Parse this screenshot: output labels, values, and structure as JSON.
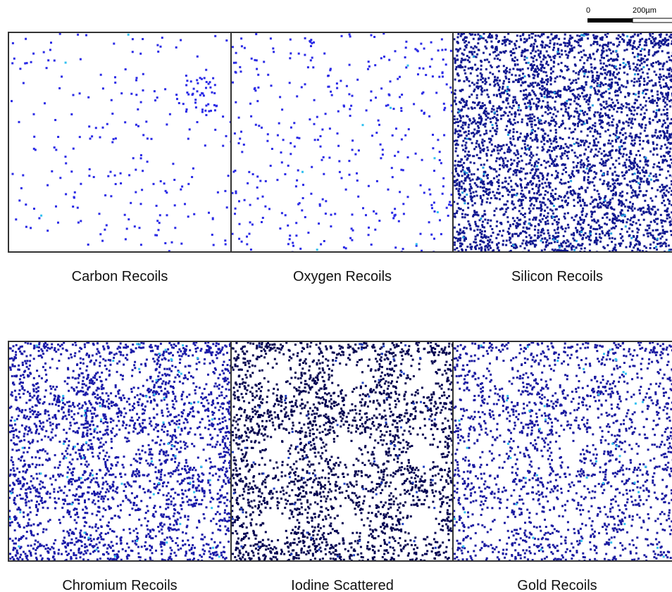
{
  "scale_bar": {
    "start": "0",
    "end": "200µm"
  },
  "panels": [
    {
      "label": "Carbon Recoils"
    },
    {
      "label": "Oxygen Recoils"
    },
    {
      "label": "Silicon Recoils"
    },
    {
      "label": "Chromium Recoils"
    },
    {
      "label": "Iodine Scattered"
    },
    {
      "label": "Gold Recoils"
    }
  ]
}
